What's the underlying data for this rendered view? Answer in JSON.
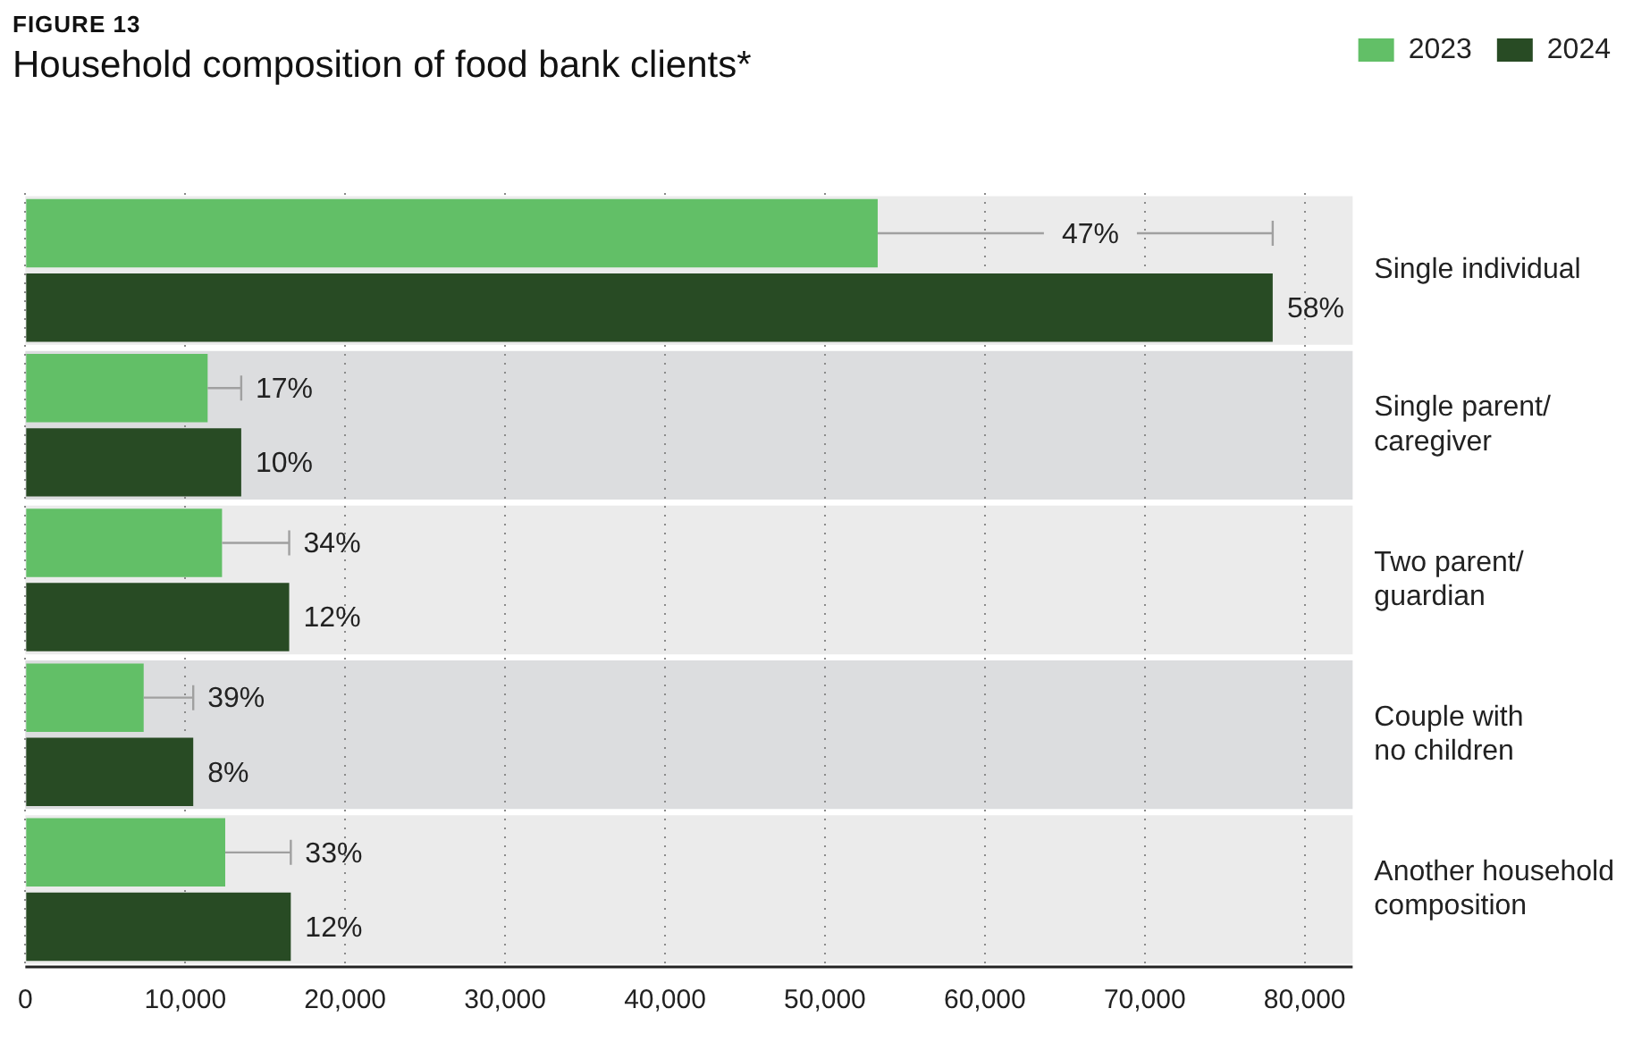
{
  "chart_data": {
    "type": "bar",
    "orientation": "horizontal",
    "subtitle": "FIGURE 13",
    "title": "Household composition of food bank clients*",
    "categories": [
      "Single individual",
      "Single parent/caregiver",
      "Two parent/guardian",
      "Couple with no children",
      "Another household composition"
    ],
    "series": [
      {
        "name": "2023",
        "color": "#62bf67",
        "values": [
          53300,
          11400,
          12300,
          7400,
          12500
        ],
        "errors": [
          [
            53300,
            78000
          ],
          [
            11400,
            13500
          ],
          [
            12300,
            16500
          ],
          [
            7400,
            10500
          ],
          [
            12500,
            16600
          ]
        ]
      },
      {
        "name": "2024",
        "color": "#284b24",
        "values": [
          78000,
          13500,
          16500,
          10500,
          16600
        ]
      }
    ],
    "annotations": [
      {
        "text": "47%",
        "x": 66600,
        "y": "Single individual"
      },
      {
        "text": "58%",
        "x": 78000,
        "y": "Single individual"
      },
      {
        "text": "17%",
        "x": 13500,
        "y": "Single parent/caregiver"
      },
      {
        "text": "10%",
        "x": 13500,
        "y": "Single parent/caregiver"
      },
      {
        "text": "34%",
        "x": 16500,
        "y": "Two parent/guardian"
      },
      {
        "text": "12%",
        "x": 16500,
        "y": "Two parent/guardian"
      },
      {
        "text": "39%",
        "x": 10500,
        "y": "Couple with no children"
      },
      {
        "text": "8%",
        "x": 10500,
        "y": "Couple with no children"
      },
      {
        "text": "33%",
        "x": 16600,
        "y": "Another household composition"
      },
      {
        "text": "12%",
        "x": 16600,
        "y": "Another household composition"
      }
    ],
    "xlim": [
      0,
      83000
    ],
    "xticks": [
      0,
      {
        "value": 10000,
        "label": "10,000"
      },
      {
        "value": 20000,
        "label": "20,000"
      },
      {
        "value": 30000,
        "label": "30,000"
      },
      {
        "value": 40000,
        "label": "40,000"
      },
      {
        "value": 50000,
        "label": "50,000"
      },
      {
        "value": 60000,
        "label": "60,000"
      },
      {
        "value": 70000,
        "label": "70,000"
      },
      {
        "value": 80000,
        "label": "80,000"
      }
    ],
    "grid": "x",
    "legend": "top right"
  }
}
